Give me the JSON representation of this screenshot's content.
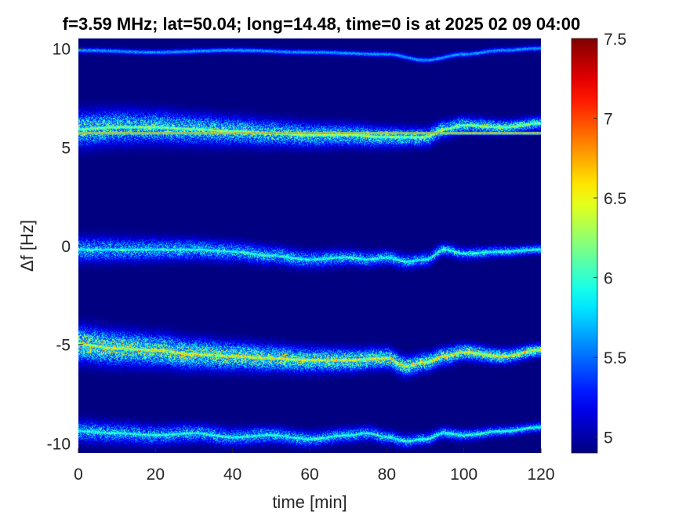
{
  "chart_data": {
    "type": "heatmap",
    "title": "f=3.59 MHz;  lat=50.04; long=14.48, time=0 is at 2025 02 09 04:00",
    "xlabel": "time [min]",
    "ylabel": "Δf [Hz]",
    "xlim": [
      0,
      120
    ],
    "ylim": [
      -10.5,
      10.5
    ],
    "x_ticks": [
      0,
      20,
      40,
      60,
      80,
      100,
      120
    ],
    "y_ticks": [
      -10,
      -5,
      0,
      5,
      10
    ],
    "x_tick_labels": [
      "0",
      "20",
      "40",
      "60",
      "80",
      "100",
      "120"
    ],
    "y_tick_labels": [
      "-10",
      "-5",
      "0",
      "5",
      "10"
    ],
    "colorbar": {
      "range": [
        4.9,
        7.5
      ],
      "ticks": [
        5,
        5.5,
        6,
        6.5,
        7,
        7.5
      ],
      "tick_labels": [
        "5",
        "5.5",
        "6",
        "6.5",
        "7",
        "7.5"
      ],
      "colormap": "jet"
    },
    "background_level": 4.9,
    "carrier_line": {
      "freq": 5.7,
      "level": 7.2
    },
    "bands": [
      {
        "name": "",
        "knots_t": [
          0,
          10,
          20,
          30,
          40,
          50,
          60,
          70,
          80,
          85,
          90,
          95,
          100,
          110,
          120
        ],
        "knots_f": [
          5.9,
          6.0,
          6.0,
          5.9,
          5.8,
          5.7,
          5.6,
          5.6,
          5.5,
          5.5,
          5.5,
          5.9,
          6.1,
          6.0,
          6.2
        ],
        "spread_start": 0.55,
        "spread_end": 0.2,
        "peak": 6.3
      },
      {
        "name": "",
        "knots_t": [
          0,
          10,
          20,
          30,
          40,
          50,
          60,
          70,
          75,
          80,
          85,
          90,
          95,
          100,
          110,
          120
        ],
        "knots_f": [
          -0.2,
          -0.2,
          -0.2,
          -0.2,
          -0.3,
          -0.5,
          -0.7,
          -0.6,
          -0.7,
          -0.6,
          -0.8,
          -0.7,
          -0.2,
          -0.4,
          -0.3,
          -0.2
        ],
        "spread_start": 0.4,
        "spread_end": 0.15,
        "peak": 6.0
      },
      {
        "name": "",
        "knots_t": [
          0,
          10,
          20,
          30,
          40,
          50,
          60,
          70,
          80,
          85,
          90,
          95,
          100,
          110,
          120
        ],
        "knots_f": [
          -5.0,
          -5.2,
          -5.3,
          -5.5,
          -5.6,
          -5.7,
          -5.8,
          -5.8,
          -5.7,
          -6.1,
          -5.9,
          -5.6,
          -5.4,
          -5.6,
          -5.3
        ],
        "spread_start": 0.55,
        "spread_end": 0.2,
        "peak": 6.6
      },
      {
        "name": "",
        "knots_t": [
          0,
          10,
          20,
          30,
          40,
          50,
          60,
          70,
          75,
          80,
          85,
          90,
          95,
          100,
          110,
          120
        ],
        "knots_f": [
          -9.4,
          -9.5,
          -9.6,
          -9.5,
          -9.7,
          -9.6,
          -9.8,
          -9.6,
          -9.5,
          -9.7,
          -9.9,
          -9.8,
          -9.5,
          -9.6,
          -9.4,
          -9.2
        ],
        "spread_start": 0.35,
        "spread_end": 0.15,
        "peak": 6.0
      },
      {
        "name": "",
        "knots_t": [
          0,
          20,
          40,
          60,
          80,
          90,
          100,
          110,
          120
        ],
        "knots_f": [
          9.9,
          9.8,
          9.9,
          9.8,
          9.7,
          9.4,
          9.7,
          9.9,
          10.0
        ],
        "spread_start": 0.1,
        "spread_end": 0.1,
        "peak": 5.6
      }
    ]
  }
}
